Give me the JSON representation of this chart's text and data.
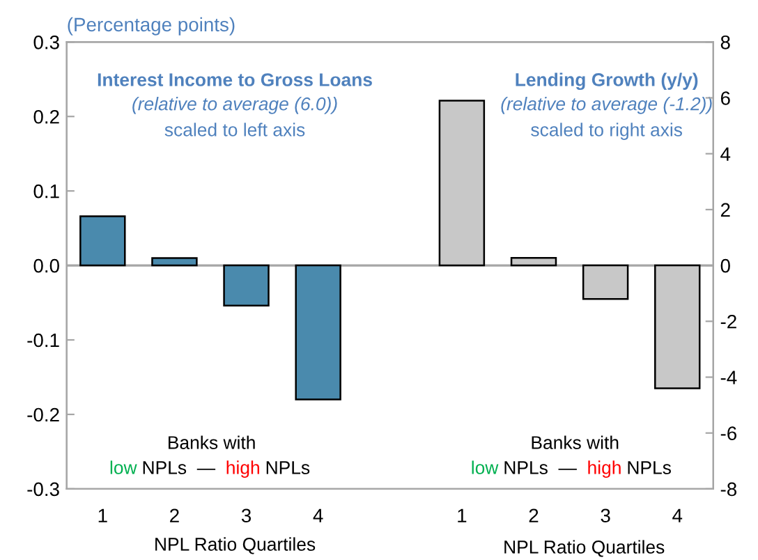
{
  "chart_data": {
    "type": "bar",
    "ylabel": "(Percentage points)",
    "xlabel": "NPL Ratio Quartiles",
    "categories": [
      "1",
      "2",
      "3",
      "4",
      null,
      "1",
      "2",
      "3",
      "4"
    ],
    "series": [
      {
        "color": "#4a8aad",
        "values": [
          0.066,
          0.01,
          -0.054,
          -0.18,
          null,
          null,
          null,
          null,
          null
        ]
      },
      {
        "color": "#c8c8c8",
        "axis": "y2",
        "values": [
          null,
          null,
          null,
          null,
          null,
          5.9,
          0.27,
          -1.2,
          -4.4
        ]
      }
    ],
    "ylim": [
      -0.3,
      0.3
    ],
    "yticks": [
      {
        "value": -0.3,
        "label": "-0.3"
      },
      {
        "value": -0.2,
        "label": "-0.2"
      },
      {
        "value": -0.1,
        "label": "-0.1"
      },
      {
        "value": 0,
        "label": "0.0"
      },
      {
        "value": 0.1,
        "label": "0.1"
      },
      {
        "value": 0.2,
        "label": "0.2"
      },
      {
        "value": 0.3,
        "label": "0.3"
      }
    ],
    "y2lim": [
      -8,
      8
    ],
    "y2ticks": [
      -8,
      -6,
      -4,
      -2,
      0,
      2,
      4,
      6,
      8
    ],
    "ref_lines": [
      {
        "axis": "y",
        "value": 0,
        "color": "#a6a6a6"
      }
    ],
    "grid": false,
    "annotations": [
      "Interest Income to Gross Loans",
      "(relative to average (6.0))",
      "scaled to left axis",
      "Lending Growth (y/y)",
      "(relative to average (-1.2))",
      "scaled to right axis",
      "Banks with",
      "low",
      "NPLs  —  ",
      "high",
      "NPLs",
      "Banks with",
      "low",
      "NPLs  —  ",
      "high",
      "NPLs"
    ]
  }
}
